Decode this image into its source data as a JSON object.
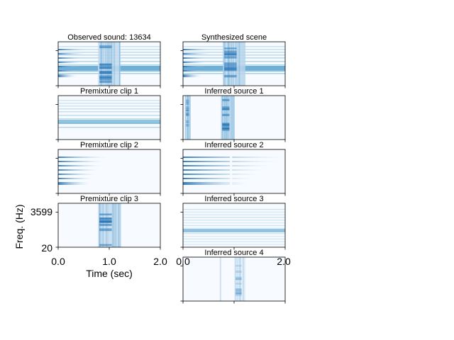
{
  "chart_data": {
    "type": "heatmap",
    "colormap": "Blues",
    "panels": [
      {
        "title": "Observed sound: 13634",
        "kind": "mix"
      },
      {
        "title": "Synthesized scene",
        "kind": "mix"
      },
      {
        "title": "Premixture clip 1",
        "kind": "tones"
      },
      {
        "title": "Inferred source 1",
        "kind": "burst_edge"
      },
      {
        "title": "Premixture clip 2",
        "kind": "decay"
      },
      {
        "title": "Inferred source 2",
        "kind": "decay_long"
      },
      {
        "title": "Premixture clip 3",
        "kind": "burst"
      },
      {
        "title": "Inferred source 3",
        "kind": "noise"
      },
      {
        "title": "Inferred source 4",
        "kind": "burst_faint"
      }
    ],
    "xlabel": "Time (sec)",
    "ylabel": "Freq. (Hz)",
    "xlim": [
      0.0,
      2.0
    ],
    "x_ticks": [
      "0.0",
      "1.0",
      "2.0"
    ],
    "y_ticks": [
      "3599",
      "20"
    ],
    "burst_time_sec": [
      0.78,
      1.22
    ]
  }
}
